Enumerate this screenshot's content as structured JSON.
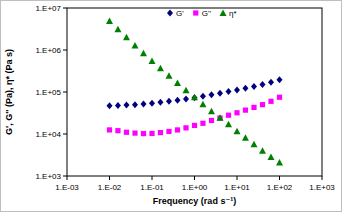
{
  "chart_data": {
    "type": "scatter",
    "x_label": "Frequency (rad s⁻¹)",
    "y_label": "G', G'' (Pa), η* (Pa s)",
    "log": true,
    "grid": false,
    "legend": "top",
    "x": [
      0.01,
      0.0158,
      0.0251,
      0.0398,
      0.0631,
      0.1,
      0.158,
      0.251,
      0.398,
      0.631,
      1,
      1.58,
      2.51,
      3.98,
      6.31,
      10,
      15.8,
      25.1,
      39.8,
      63.1,
      100
    ],
    "xlim": [
      0.001,
      1000
    ],
    "xticks": [
      {
        "value": 0.001,
        "label": "1.E-03"
      },
      {
        "value": 0.01,
        "label": "1.E-02"
      },
      {
        "value": 0.1,
        "label": "1.E-01"
      },
      {
        "value": 1,
        "label": "1.E+00"
      },
      {
        "value": 10,
        "label": "1.E+01"
      },
      {
        "value": 100,
        "label": "1.E+02"
      },
      {
        "value": 1000,
        "label": "1.E+03"
      }
    ],
    "ylim": [
      1000,
      10000000
    ],
    "yticks": [
      {
        "value": 1000,
        "label": "1.E+03"
      },
      {
        "value": 10000,
        "label": "1.E+04"
      },
      {
        "value": 100000,
        "label": "1.E+05"
      },
      {
        "value": 1000000,
        "label": "1.E+06"
      },
      {
        "value": 10000000,
        "label": "1.E+07"
      }
    ],
    "series": [
      {
        "name": "G'",
        "color": "#000080",
        "marker": "diamond",
        "line_style": "none",
        "values": [
          47000,
          48000,
          49000,
          50000,
          52000,
          54000,
          57000,
          60000,
          64000,
          68000,
          73000,
          79000,
          86000,
          94000,
          103000,
          112000,
          123000,
          136000,
          150000,
          170000,
          195000
        ]
      },
      {
        "name": "G''",
        "color": "#ff00ff",
        "marker": "square",
        "line_style": "none",
        "values": [
          12500,
          12000,
          11000,
          10500,
          10200,
          10300,
          10800,
          11500,
          12500,
          14000,
          16000,
          18000,
          21000,
          24000,
          28000,
          32000,
          37000,
          43000,
          50000,
          60000,
          75000
        ]
      },
      {
        "name": "η*",
        "color": "#008000",
        "marker": "triangle",
        "line_style": "none",
        "values": [
          4900000,
          3130000,
          2000000,
          1280000,
          840000,
          550000,
          367000,
          243000,
          164000,
          110000,
          75000,
          51000,
          35000,
          24400,
          17000,
          11700,
          8100,
          5700,
          4000,
          2850,
          2100
        ]
      }
    ]
  }
}
